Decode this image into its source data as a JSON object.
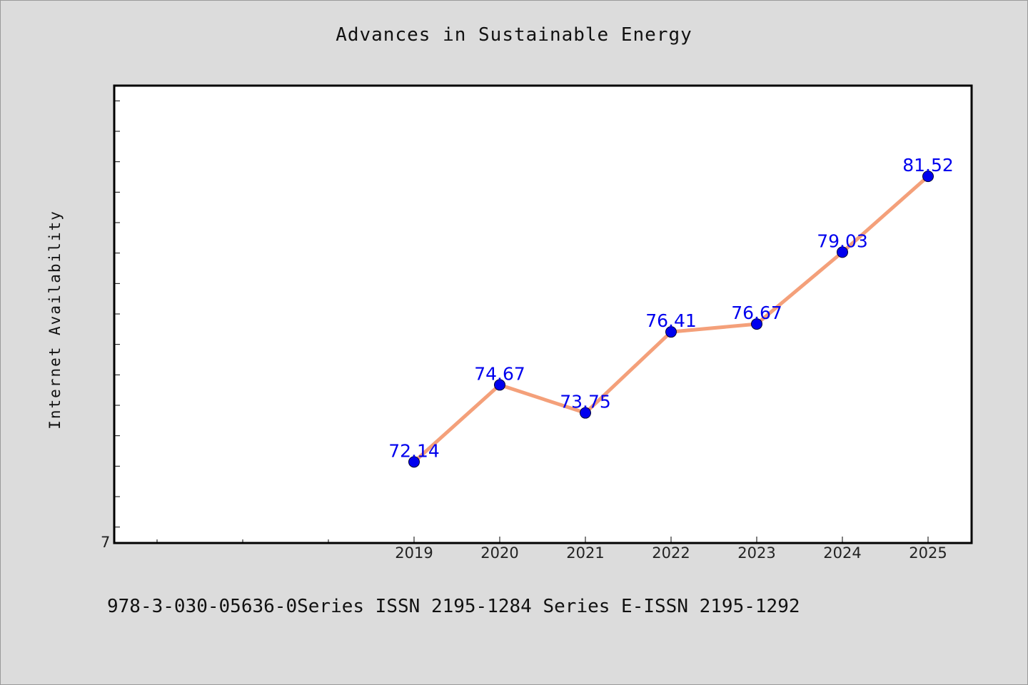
{
  "chart_data": {
    "type": "line",
    "title": "Advances in Sustainable Energy",
    "ylabel": "Internet Availability",
    "xlabel": "",
    "categories": [
      "2019",
      "2020",
      "2021",
      "2022",
      "2023",
      "2024",
      "2025"
    ],
    "values": [
      72.14,
      74.67,
      73.75,
      76.41,
      76.67,
      79.03,
      81.52
    ],
    "data_labels": [
      "72.14",
      "74.67",
      "73.75",
      "76.41",
      "76.67",
      "79.03",
      "81.52"
    ],
    "y_tick_label": "7",
    "ylim": [
      69.5,
      84.5
    ],
    "x_positions": [
      2019,
      2020,
      2021,
      2022,
      2023,
      2024,
      2025
    ],
    "xlim": [
      2015.5,
      2025.5
    ],
    "grid": false,
    "line_color": "#f4a07a",
    "marker_color": "#0000ee",
    "label_color": "#0000ee"
  },
  "footer": {
    "text": "978-3-030-05636-0Series ISSN 2195-1284 Series E-ISSN 2195-1292"
  }
}
